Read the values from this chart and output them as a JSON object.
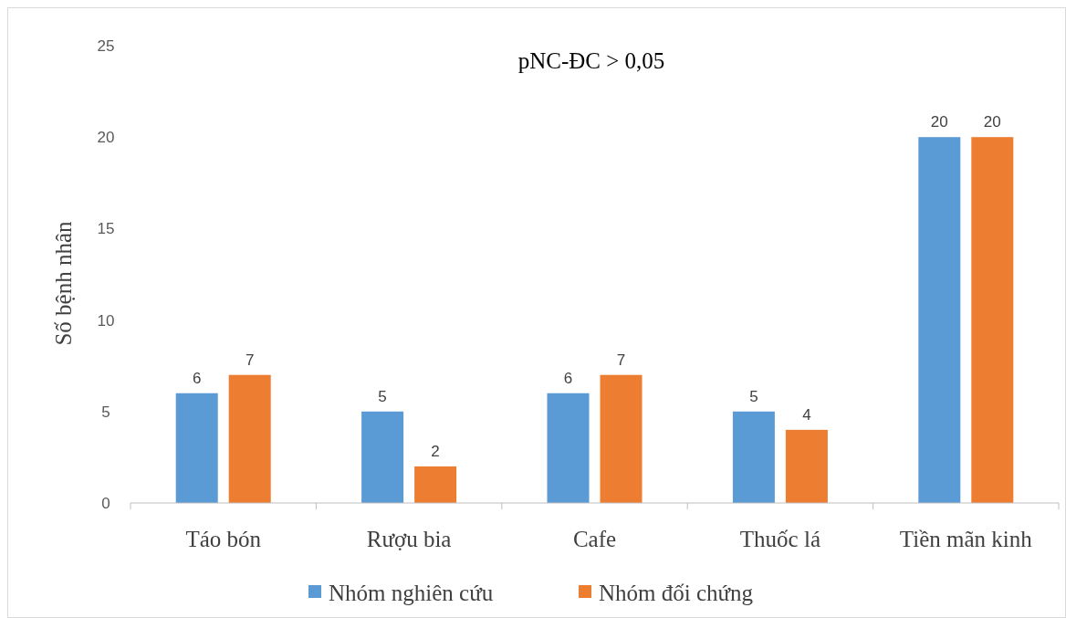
{
  "chart_data": {
    "type": "bar",
    "title": "pNC-ĐC > 0,05",
    "ylabel": "Số bệnh nhân",
    "categories": [
      "Táo bón",
      "Rượu bia",
      "Cafe",
      "Thuốc lá",
      "Tiền mãn kinh"
    ],
    "series": [
      {
        "name": "Nhóm nghiên cứu",
        "color": "#5b9bd5",
        "values": [
          6,
          5,
          6,
          5,
          20
        ]
      },
      {
        "name": "Nhóm đối chứng",
        "color": "#ed7d31",
        "values": [
          7,
          2,
          7,
          4,
          20
        ]
      }
    ],
    "ylim": [
      0,
      25
    ],
    "yticks": [
      0,
      5,
      10,
      15,
      20,
      25
    ],
    "grid": false,
    "data_labels": true,
    "legend": "bottom"
  }
}
